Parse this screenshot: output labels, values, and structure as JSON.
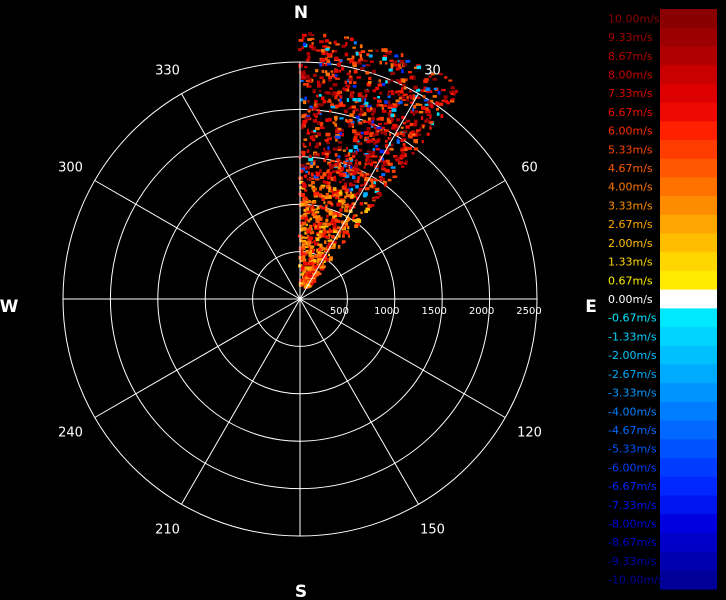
{
  "chart_data": {
    "type": "polar-radar-scan",
    "cardinals": {
      "n": "N",
      "e": "E",
      "s": "S",
      "w": "W"
    },
    "angle_labels": [
      {
        "deg": 30,
        "text": "30"
      },
      {
        "deg": 60,
        "text": "60"
      },
      {
        "deg": 120,
        "text": "120"
      },
      {
        "deg": 150,
        "text": "150"
      },
      {
        "deg": 210,
        "text": "210"
      },
      {
        "deg": 240,
        "text": "240"
      },
      {
        "deg": 300,
        "text": "300"
      },
      {
        "deg": 330,
        "text": "330"
      }
    ],
    "range_rings": [
      500,
      1000,
      1500,
      2000,
      2500
    ],
    "range_labels": [
      "500",
      "1000",
      "1500",
      "2000",
      "2500"
    ],
    "range_max": 2500,
    "spoke_step_deg": 30,
    "scan_sector": {
      "start_deg": 0,
      "end_deg": 38,
      "max_range": 2800
    },
    "colorbar": {
      "unit": "m/s",
      "levels": [
        {
          "label": "10.00m/s",
          "color": "#8a0000",
          "text_color": "#8a0000"
        },
        {
          "label": "9.33m/s",
          "color": "#9c0000",
          "text_color": "#a00000"
        },
        {
          "label": "8.67m/s",
          "color": "#b00000",
          "text_color": "#b40000"
        },
        {
          "label": "8.00m/s",
          "color": "#c80000",
          "text_color": "#c80000"
        },
        {
          "label": "7.33m/s",
          "color": "#dc0000",
          "text_color": "#dc0000"
        },
        {
          "label": "6.67m/s",
          "color": "#ee0a00",
          "text_color": "#ee1000"
        },
        {
          "label": "6.00m/s",
          "color": "#ff2000",
          "text_color": "#ff2a00"
        },
        {
          "label": "5.33m/s",
          "color": "#ff3c00",
          "text_color": "#ff4400"
        },
        {
          "label": "4.67m/s",
          "color": "#ff5800",
          "text_color": "#ff5c00"
        },
        {
          "label": "4.00m/s",
          "color": "#ff7200",
          "text_color": "#ff7800"
        },
        {
          "label": "3.33m/s",
          "color": "#ff8c00",
          "text_color": "#ff9000"
        },
        {
          "label": "2.67m/s",
          "color": "#ffa600",
          "text_color": "#ffaa00"
        },
        {
          "label": "2.00m/s",
          "color": "#ffbe00",
          "text_color": "#ffc000"
        },
        {
          "label": "1.33m/s",
          "color": "#ffd600",
          "text_color": "#ffd800"
        },
        {
          "label": "0.67m/s",
          "color": "#ffea00",
          "text_color": "#ffee00"
        },
        {
          "label": "0.00m/s",
          "color": "#ffffff",
          "text_color": "#ffffff"
        },
        {
          "label": "-0.67m/s",
          "color": "#00e8ff",
          "text_color": "#00e8ff"
        },
        {
          "label": "-1.33m/s",
          "color": "#00d4ff",
          "text_color": "#00d4ff"
        },
        {
          "label": "-2.00m/s",
          "color": "#00c0ff",
          "text_color": "#00c4ff"
        },
        {
          "label": "-2.67m/s",
          "color": "#00aaff",
          "text_color": "#00aaff"
        },
        {
          "label": "-3.33m/s",
          "color": "#0094ff",
          "text_color": "#0098ff"
        },
        {
          "label": "-4.00m/s",
          "color": "#007eff",
          "text_color": "#0080ff"
        },
        {
          "label": "-4.67m/s",
          "color": "#0068ff",
          "text_color": "#006aff"
        },
        {
          "label": "-5.33m/s",
          "color": "#0052ff",
          "text_color": "#0054ff"
        },
        {
          "label": "-6.00m/s",
          "color": "#003cff",
          "text_color": "#003eff"
        },
        {
          "label": "-6.67m/s",
          "color": "#0028ff",
          "text_color": "#0028ff"
        },
        {
          "label": "-7.33m/s",
          "color": "#0014f0",
          "text_color": "#0014f0"
        },
        {
          "label": "-8.00m/s",
          "color": "#0000e0",
          "text_color": "#0000e0"
        },
        {
          "label": "-8.67m/s",
          "color": "#0000c8",
          "text_color": "#0000c8"
        },
        {
          "label": "-9.33m/s",
          "color": "#0000b0",
          "text_color": "#0000b0"
        },
        {
          "label": "-10.00m/s",
          "color": "#000098",
          "text_color": "#000098"
        }
      ]
    }
  }
}
